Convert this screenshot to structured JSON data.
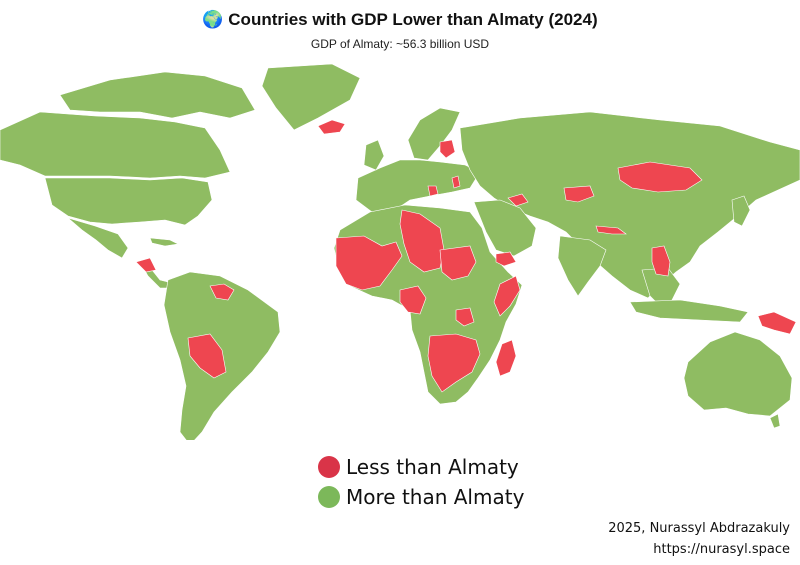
{
  "header": {
    "title_icon": "🌍",
    "title": "Countries with GDP Lower than Almaty (2024)",
    "subtitle": "GDP of Almaty: ~56.3 billion USD"
  },
  "colors": {
    "less": "#ee4650",
    "more": "#8fbc62",
    "border": "#ffffff"
  },
  "legend": [
    {
      "label": "Less than Almaty",
      "color": "#d93448"
    },
    {
      "label": "More than Almaty",
      "color": "#7cb85a"
    }
  ],
  "credit": {
    "author": "2025, Nurassyl Abdrazakuly",
    "site": "https://nurasyl.space"
  }
}
